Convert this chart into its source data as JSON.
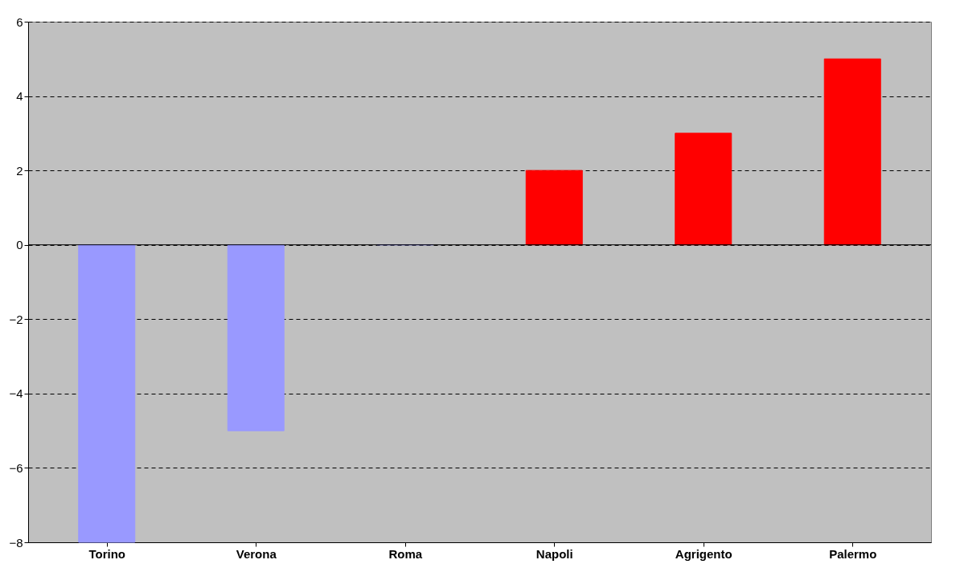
{
  "chart_data": {
    "type": "bar",
    "categories": [
      "Torino",
      "Verona",
      "Roma",
      "Napoli",
      "Agrigento",
      "Palermo"
    ],
    "values": [
      -8,
      -5,
      0,
      2,
      3,
      5
    ],
    "colors": [
      "#9999ff",
      "#9999ff",
      "#9999ff",
      "#ff0000",
      "#ff0000",
      "#ff0000"
    ],
    "ylim": [
      -8,
      6
    ],
    "yticks": [
      -8,
      -6,
      -4,
      -2,
      0,
      2,
      4,
      6
    ],
    "grid": "y",
    "ref_lines": [
      {
        "axis": "y",
        "value": 0,
        "color": "#000000",
        "line_style": "solid"
      }
    ]
  }
}
